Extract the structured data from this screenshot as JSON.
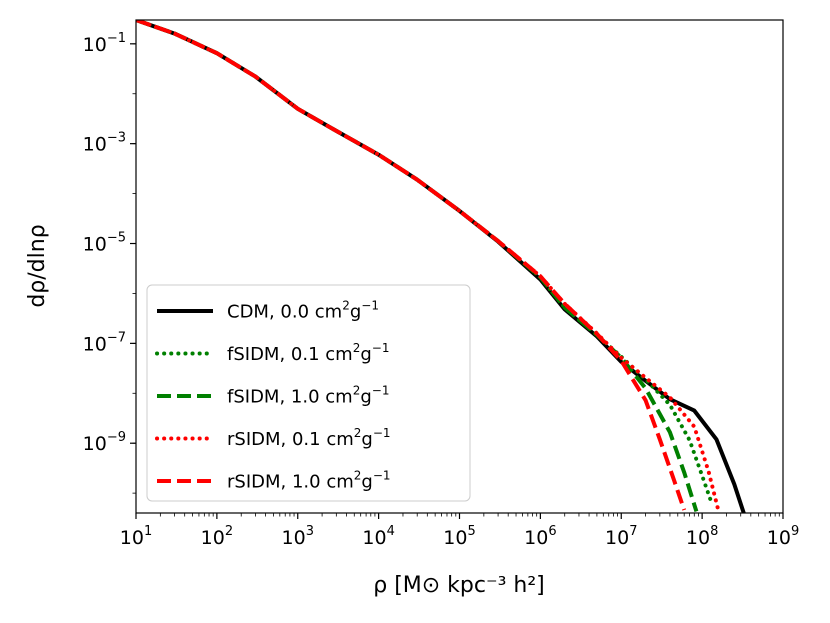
{
  "chart_data": {
    "type": "line",
    "title": "",
    "xlabel": "ρ [M⊙ kpc⁻³ h²]",
    "ylabel": "dρ/dlnρ",
    "xscale": "log",
    "yscale": "log",
    "xlim": [
      10,
      1000000000
    ],
    "ylim": [
      4e-11,
      0.3
    ],
    "grid": false,
    "legend_position": "lower-left",
    "x_ticks": [
      {
        "mantissa": "10",
        "exp": "1"
      },
      {
        "mantissa": "10",
        "exp": "2"
      },
      {
        "mantissa": "10",
        "exp": "3"
      },
      {
        "mantissa": "10",
        "exp": "4"
      },
      {
        "mantissa": "10",
        "exp": "5"
      },
      {
        "mantissa": "10",
        "exp": "6"
      },
      {
        "mantissa": "10",
        "exp": "7"
      },
      {
        "mantissa": "10",
        "exp": "8"
      },
      {
        "mantissa": "10",
        "exp": "9"
      }
    ],
    "y_ticks": [
      {
        "mantissa": "10",
        "exp": "−1"
      },
      {
        "mantissa": "10",
        "exp": "−3"
      },
      {
        "mantissa": "10",
        "exp": "−5"
      },
      {
        "mantissa": "10",
        "exp": "−7"
      },
      {
        "mantissa": "10",
        "exp": "−9"
      }
    ],
    "series": [
      {
        "name": "CDM",
        "label": "CDM, 0.0 cm",
        "label_unit": "g",
        "color": "#000000",
        "style": "solid",
        "x": [
          10,
          30,
          100,
          300,
          1000,
          3000,
          10000,
          30000,
          100000,
          300000,
          1000000,
          2000000,
          5000000,
          10000000,
          20000000,
          40000000,
          80000000,
          150000000,
          250000000,
          330000000
        ],
        "y": [
          0.3,
          0.16,
          0.065,
          0.022,
          0.005,
          0.0018,
          0.0006,
          0.00019,
          4.5e-05,
          1.09e-05,
          1.9e-06,
          4.8e-07,
          1.38e-07,
          4.26e-08,
          1.78e-08,
          7.6e-09,
          4.5e-09,
          1.2e-09,
          1.51e-10,
          3.8e-11
        ]
      },
      {
        "name": "fSIDM 0.1",
        "label": "fSIDM, 0.1 cm",
        "label_unit": "g",
        "color": "#008000",
        "style": "dotted",
        "x": [
          10,
          30,
          100,
          300,
          1000,
          3000,
          10000,
          30000,
          100000,
          300000,
          1000000,
          2000000,
          5000000,
          10000000,
          20000000,
          40000000,
          70000000,
          100000000,
          130000000
        ],
        "y": [
          0.3,
          0.16,
          0.065,
          0.022,
          0.005,
          0.0018,
          0.0006,
          0.00019,
          4.5e-05,
          1.12e-05,
          2.1e-06,
          5.2e-07,
          1.48e-07,
          5.37e-08,
          1.91e-08,
          5.89e-09,
          1.15e-09,
          2.24e-10,
          6.6e-11
        ]
      },
      {
        "name": "fSIDM 1.0",
        "label": "fSIDM, 1.0 cm",
        "label_unit": "g",
        "color": "#008000",
        "style": "dashed",
        "x": [
          10,
          30,
          100,
          300,
          1000,
          3000,
          10000,
          30000,
          100000,
          300000,
          1000000,
          2000000,
          5000000,
          10000000,
          20000000,
          40000000,
          60000000,
          85000000
        ],
        "y": [
          0.3,
          0.16,
          0.065,
          0.022,
          0.005,
          0.0018,
          0.0006,
          0.00019,
          4.5e-05,
          1.12e-05,
          2.1e-06,
          5.2e-07,
          1.48e-07,
          5.13e-08,
          1.26e-08,
          1.66e-09,
          2.6e-10,
          4.3e-11
        ]
      },
      {
        "name": "rSIDM 0.1",
        "label": "rSIDM, 0.1 cm",
        "label_unit": "g",
        "color": "#ff0000",
        "style": "dotted",
        "x": [
          10,
          30,
          100,
          300,
          1000,
          3000,
          10000,
          30000,
          100000,
          300000,
          1000000,
          2000000,
          5000000,
          10000000,
          20000000,
          40000000,
          80000000,
          120000000,
          160000000
        ],
        "y": [
          0.3,
          0.16,
          0.065,
          0.022,
          0.005,
          0.0018,
          0.0006,
          0.00019,
          4.5e-05,
          1.12e-05,
          2.2e-06,
          6.2e-07,
          1.58e-07,
          5.13e-08,
          2.04e-08,
          8.32e-09,
          2.14e-09,
          2.75e-10,
          4.3e-11
        ]
      },
      {
        "name": "rSIDM 1.0",
        "label": "rSIDM, 1.0 cm",
        "label_unit": "g",
        "color": "#ff0000",
        "style": "dashed",
        "x": [
          10,
          30,
          100,
          300,
          1000,
          3000,
          10000,
          30000,
          100000,
          300000,
          1000000,
          2000000,
          5000000,
          10000000,
          20000000,
          30000000,
          45000000,
          60000000
        ],
        "y": [
          0.3,
          0.16,
          0.065,
          0.022,
          0.005,
          0.0018,
          0.0006,
          0.00019,
          4.5e-05,
          1.12e-05,
          2.2e-06,
          6.2e-07,
          1.55e-07,
          4.47e-08,
          7.24e-09,
          1.2e-09,
          1.8e-10,
          4.6e-11
        ]
      }
    ]
  }
}
